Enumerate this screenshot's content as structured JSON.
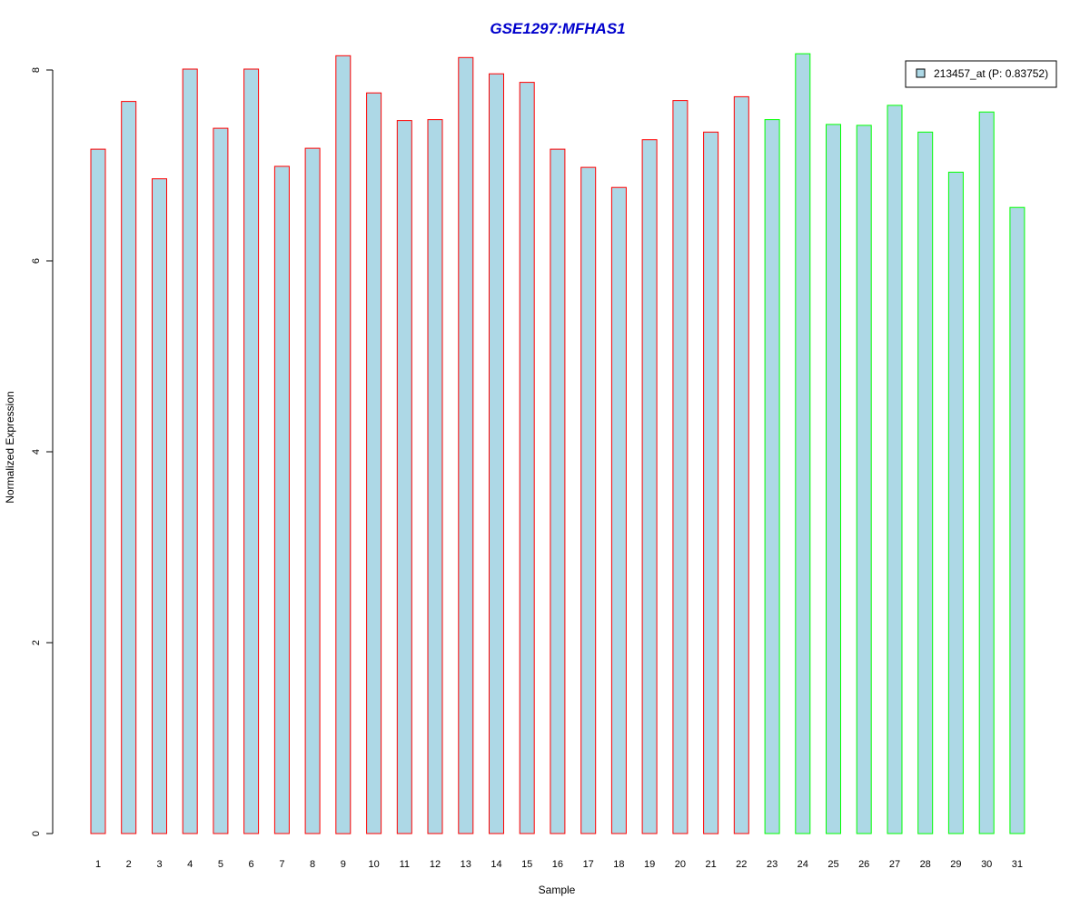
{
  "chart_data": {
    "type": "bar",
    "title": "GSE1297:MFHAS1",
    "xlabel": "Sample",
    "ylabel": "Normalized Expression",
    "ylim": [
      0,
      8.2
    ],
    "yticks": [
      "0",
      "2",
      "4",
      "6",
      "8"
    ],
    "categories": [
      "1",
      "2",
      "3",
      "4",
      "5",
      "6",
      "7",
      "8",
      "9",
      "10",
      "11",
      "12",
      "13",
      "14",
      "15",
      "16",
      "17",
      "18",
      "19",
      "20",
      "21",
      "22",
      "23",
      "24",
      "25",
      "26",
      "27",
      "28",
      "29",
      "30",
      "31"
    ],
    "values": [
      7.17,
      7.67,
      6.86,
      8.01,
      7.39,
      8.01,
      6.99,
      7.18,
      8.15,
      7.76,
      7.47,
      7.48,
      8.13,
      7.96,
      7.87,
      7.17,
      6.98,
      6.77,
      7.27,
      7.68,
      7.35,
      7.72,
      7.48,
      8.17,
      7.43,
      7.42,
      7.63,
      7.35,
      6.93,
      7.56,
      6.56
    ],
    "group_of_bar": [
      "red",
      "red",
      "red",
      "red",
      "red",
      "red",
      "red",
      "red",
      "red",
      "red",
      "red",
      "red",
      "red",
      "red",
      "red",
      "red",
      "red",
      "red",
      "red",
      "red",
      "red",
      "red",
      "green",
      "green",
      "green",
      "green",
      "green",
      "green",
      "green",
      "green",
      "green"
    ],
    "series": [
      {
        "name": "213457_at (P: 0.83752)",
        "values_ref": "values"
      }
    ],
    "legend_position": "top-right",
    "grid": false,
    "colors": {
      "bar_fill": "#add8e6",
      "group_red_border": "#ff0000",
      "group_green_border": "#00ff00",
      "title": "#0000cc",
      "axis": "#000000"
    }
  }
}
